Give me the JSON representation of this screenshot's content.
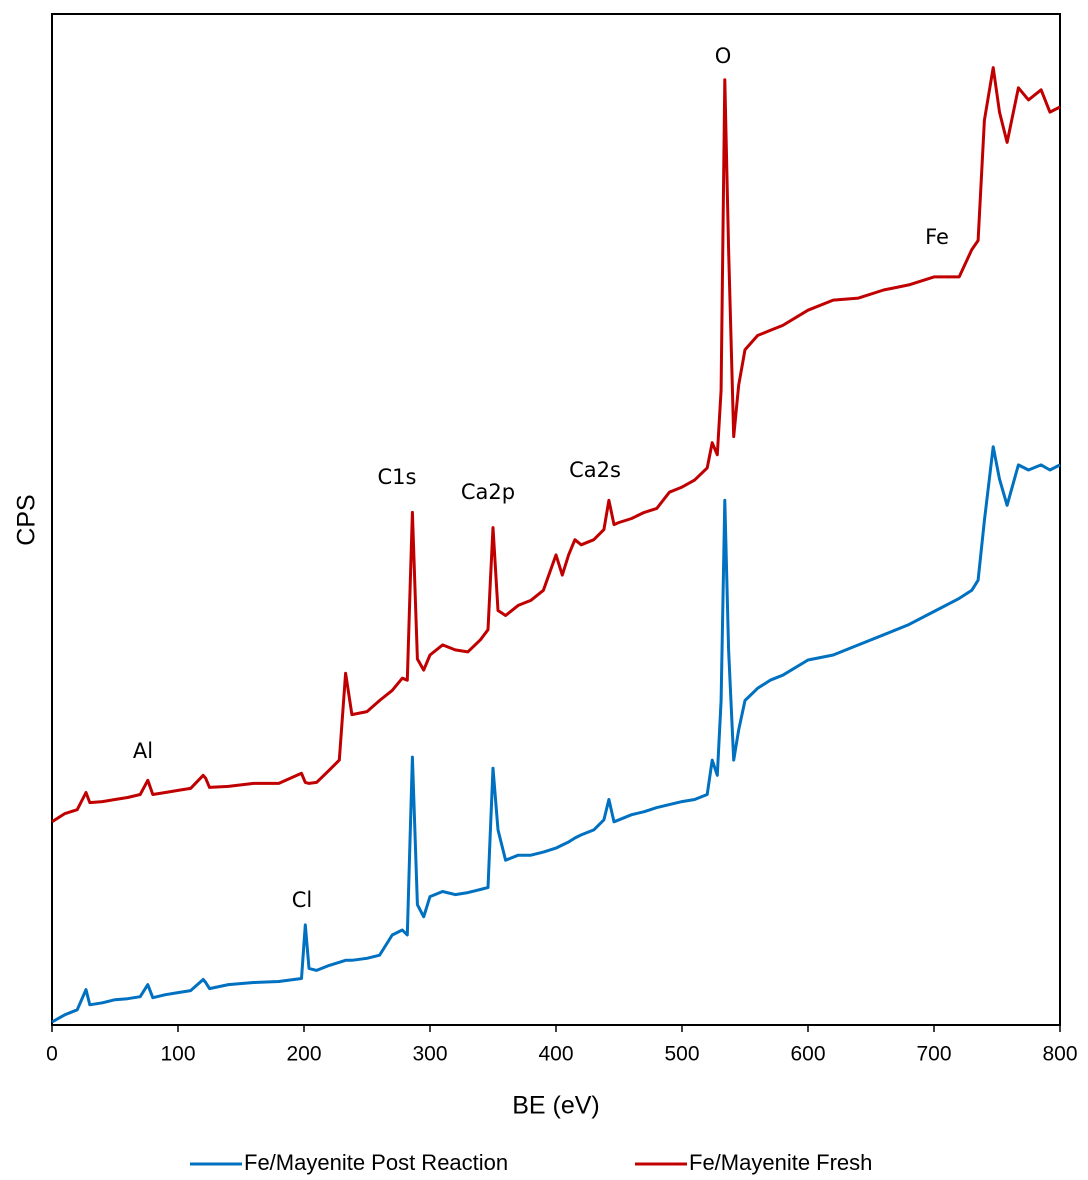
{
  "chart_data": {
    "type": "line",
    "xlabel": "BE (eV)",
    "ylabel": "CPS",
    "xlim": [
      0,
      800
    ],
    "xticks": [
      0,
      100,
      200,
      300,
      400,
      500,
      600,
      700,
      800
    ],
    "ylim": [
      0,
      100
    ],
    "annotations": [
      "O",
      "Fe",
      "C1s",
      "Ca2p",
      "Ca2s",
      "Al",
      "Cl"
    ],
    "legend": "bottom",
    "x": [
      0,
      10,
      20,
      27,
      30,
      40,
      50,
      60,
      70,
      76,
      80,
      90,
      100,
      110,
      120,
      122,
      125,
      140,
      160,
      180,
      198,
      201,
      204,
      210,
      220,
      228,
      233,
      238,
      250,
      260,
      270,
      278,
      282,
      286,
      290,
      295,
      300,
      310,
      320,
      330,
      340,
      346,
      350,
      354,
      360,
      370,
      380,
      390,
      400,
      405,
      410,
      415,
      420,
      430,
      438,
      442,
      446,
      450,
      460,
      470,
      480,
      490,
      500,
      510,
      520,
      524,
      528,
      531,
      534,
      537,
      541,
      545,
      550,
      560,
      570,
      580,
      600,
      620,
      640,
      660,
      680,
      700,
      720,
      730,
      735,
      740,
      747,
      752,
      758,
      767,
      775,
      785,
      792,
      800
    ],
    "series": [
      {
        "name": "Fe/Mayenite Post Reaction",
        "color": "#0070c0",
        "values": [
          0.3,
          1.0,
          1.5,
          3.5,
          2.0,
          2.2,
          2.5,
          2.6,
          2.8,
          4.0,
          2.7,
          3.0,
          3.2,
          3.4,
          4.5,
          4.2,
          3.6,
          4.0,
          4.2,
          4.3,
          4.6,
          9.9,
          5.6,
          5.4,
          5.9,
          6.2,
          6.4,
          6.4,
          6.6,
          6.9,
          8.9,
          9.4,
          8.9,
          26.5,
          11.9,
          10.7,
          12.7,
          13.2,
          12.9,
          13.1,
          13.4,
          13.6,
          25.4,
          19.3,
          16.3,
          16.8,
          16.8,
          17.1,
          17.5,
          17.8,
          18.1,
          18.5,
          18.8,
          19.3,
          20.3,
          22.3,
          20.1,
          20.3,
          20.8,
          21.1,
          21.5,
          21.8,
          22.1,
          22.3,
          22.8,
          26.2,
          24.7,
          32.1,
          51.9,
          37.1,
          26.2,
          29.2,
          32.1,
          33.3,
          34.1,
          34.6,
          36.1,
          36.6,
          37.6,
          38.6,
          39.6,
          40.9,
          42.2,
          43.0,
          44.0,
          49.9,
          57.2,
          54.0,
          51.4,
          55.4,
          54.9,
          55.4,
          54.9,
          55.4
        ]
      },
      {
        "name": "Fe/Mayenite Fresh",
        "color": "#c00000",
        "values": [
          20.1,
          20.9,
          21.3,
          23.0,
          22.0,
          22.1,
          22.3,
          22.5,
          22.8,
          24.2,
          22.8,
          23.0,
          23.2,
          23.4,
          24.7,
          24.4,
          23.5,
          23.6,
          23.9,
          23.9,
          24.9,
          24.0,
          23.9,
          24.0,
          25.2,
          26.2,
          34.8,
          30.7,
          31.0,
          32.1,
          33.1,
          34.3,
          34.1,
          50.7,
          36.2,
          35.1,
          36.6,
          37.6,
          37.1,
          36.9,
          38.1,
          39.1,
          49.2,
          41.0,
          40.5,
          41.5,
          42.0,
          43.0,
          46.5,
          44.5,
          46.5,
          48.0,
          47.5,
          48.0,
          49.0,
          51.9,
          49.5,
          49.7,
          50.1,
          50.7,
          51.1,
          52.7,
          53.2,
          53.9,
          55.1,
          57.6,
          56.4,
          62.8,
          93.5,
          76.7,
          58.2,
          63.3,
          66.8,
          68.2,
          68.7,
          69.2,
          70.7,
          71.7,
          71.9,
          72.7,
          73.2,
          74.0,
          74.0,
          76.7,
          77.6,
          89.5,
          94.7,
          90.3,
          87.3,
          92.7,
          91.5,
          92.5,
          90.3,
          90.8
        ]
      }
    ]
  }
}
